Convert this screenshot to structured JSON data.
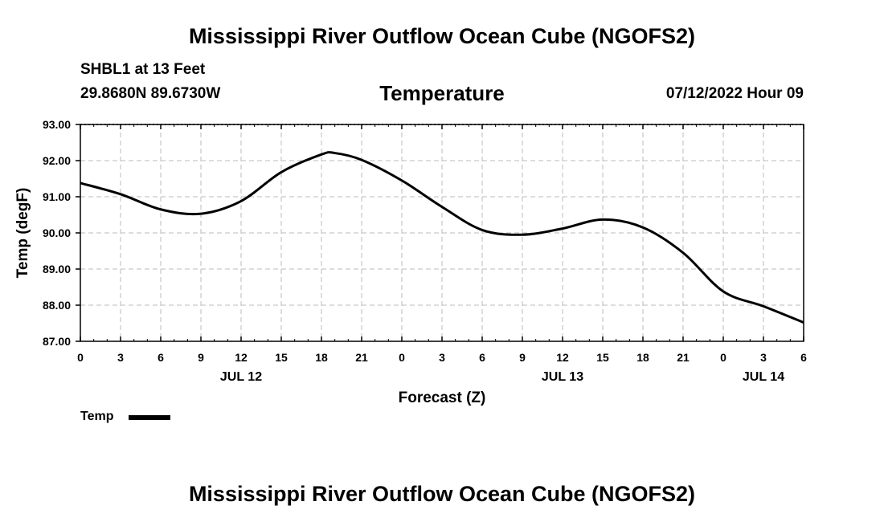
{
  "page": {
    "title_top": "Mississippi River Outflow Ocean Cube (NGOFS2)",
    "title_bottom": "Mississippi River Outflow Ocean Cube (NGOFS2)",
    "station": "SHBL1 at 13 Feet",
    "coords": "29.8680N  89.6730W",
    "parameter": "Temperature",
    "datetime": "07/12/2022 Hour 09"
  },
  "colors": {
    "line": "#000000",
    "grid": "#bbbbbb",
    "axis": "#000000"
  },
  "chart_data": {
    "type": "line",
    "title": "Temperature",
    "xlabel": "Forecast (Z)",
    "ylabel": "Temp (degF)",
    "ylim": [
      87.0,
      93.0
    ],
    "xlim": [
      0,
      54
    ],
    "y_ticks": [
      "87.00",
      "88.00",
      "89.00",
      "90.00",
      "91.00",
      "92.00",
      "93.00"
    ],
    "x_ticks": [
      "0",
      "3",
      "6",
      "9",
      "12",
      "15",
      "18",
      "21",
      "0",
      "3",
      "6",
      "9",
      "12",
      "15",
      "18",
      "21",
      "0",
      "3",
      "6"
    ],
    "date_labels": [
      {
        "label": "JUL 12",
        "hour": 12
      },
      {
        "label": "JUL 13",
        "hour": 36
      },
      {
        "label": "JUL 14",
        "hour": 51
      }
    ],
    "grid": true,
    "legend": [
      {
        "label": "Temp",
        "placement": "bottom-left"
      }
    ],
    "series": [
      {
        "name": "Temp",
        "x": [
          0,
          3,
          6,
          9,
          12,
          15,
          18,
          19,
          21,
          24,
          27,
          30,
          33,
          36,
          39,
          42,
          45,
          48,
          51,
          54
        ],
        "y": [
          91.38,
          91.07,
          90.65,
          90.53,
          90.88,
          91.68,
          92.17,
          92.21,
          92.02,
          91.45,
          90.72,
          90.08,
          89.95,
          90.12,
          90.37,
          90.15,
          89.45,
          88.38,
          87.97,
          87.52
        ]
      }
    ]
  }
}
